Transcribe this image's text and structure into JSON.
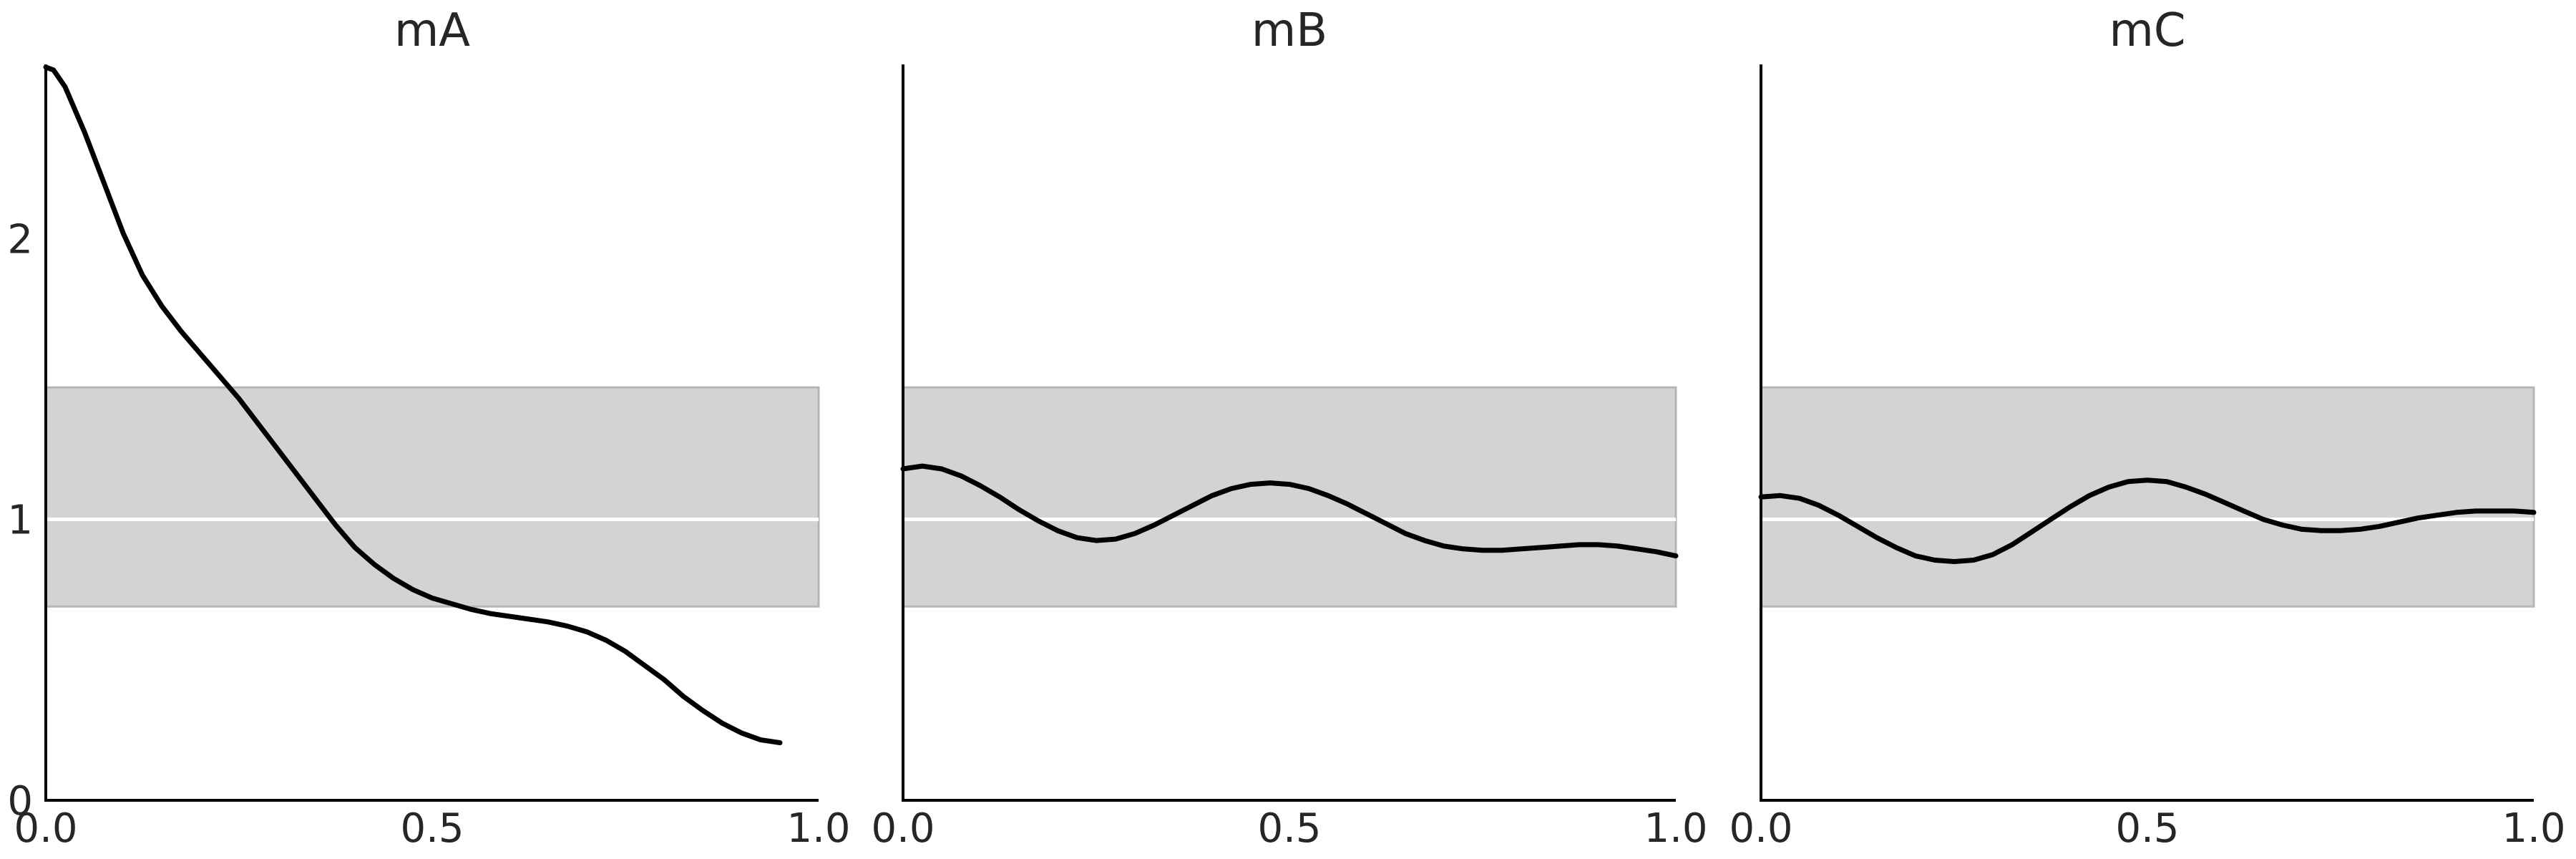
{
  "chart_data": [
    {
      "type": "line",
      "title": "mA",
      "xlabel": "",
      "ylabel": "",
      "xlim": [
        0,
        1
      ],
      "ylim": [
        0,
        2.62
      ],
      "x_ticks": [
        0,
        0.5,
        1
      ],
      "x_tick_labels": [
        "0.0",
        "0.5",
        "1.0"
      ],
      "y_ticks": [
        0,
        1,
        2
      ],
      "y_tick_labels": [
        "0",
        "1",
        "2"
      ],
      "grid": false,
      "reference_line": 1.0,
      "band": [
        0.69,
        1.47
      ],
      "series": [
        {
          "x": [
            0.0,
            0.01,
            0.025,
            0.05,
            0.075,
            0.1,
            0.125,
            0.15,
            0.175,
            0.2,
            0.225,
            0.25,
            0.275,
            0.3,
            0.325,
            0.35,
            0.375,
            0.4,
            0.425,
            0.45,
            0.475,
            0.5,
            0.525,
            0.55,
            0.575,
            0.6,
            0.625,
            0.65,
            0.675,
            0.7,
            0.725,
            0.75,
            0.775,
            0.8,
            0.825,
            0.85,
            0.875,
            0.9,
            0.925,
            0.95
          ],
          "y": [
            2.61,
            2.6,
            2.54,
            2.38,
            2.2,
            2.02,
            1.87,
            1.76,
            1.67,
            1.59,
            1.51,
            1.43,
            1.34,
            1.25,
            1.16,
            1.07,
            0.98,
            0.9,
            0.84,
            0.79,
            0.75,
            0.72,
            0.7,
            0.68,
            0.665,
            0.655,
            0.645,
            0.635,
            0.62,
            0.6,
            0.57,
            0.53,
            0.48,
            0.43,
            0.37,
            0.32,
            0.275,
            0.24,
            0.215,
            0.205
          ]
        }
      ]
    },
    {
      "type": "line",
      "title": "mB",
      "xlabel": "",
      "ylabel": "",
      "xlim": [
        0,
        1
      ],
      "ylim": [
        0,
        2.62
      ],
      "x_ticks": [
        0,
        0.5,
        1
      ],
      "x_tick_labels": [
        "0.0",
        "0.5",
        "1.0"
      ],
      "y_ticks": [],
      "y_tick_labels": [],
      "grid": false,
      "reference_line": 1.0,
      "band": [
        0.69,
        1.47
      ],
      "series": [
        {
          "x": [
            0.0,
            0.025,
            0.05,
            0.075,
            0.1,
            0.125,
            0.15,
            0.175,
            0.2,
            0.225,
            0.25,
            0.275,
            0.3,
            0.325,
            0.35,
            0.375,
            0.4,
            0.425,
            0.45,
            0.475,
            0.5,
            0.525,
            0.55,
            0.575,
            0.6,
            0.625,
            0.65,
            0.675,
            0.7,
            0.725,
            0.75,
            0.775,
            0.8,
            0.825,
            0.85,
            0.875,
            0.9,
            0.925,
            0.95,
            0.975,
            1.0
          ],
          "y": [
            1.18,
            1.19,
            1.18,
            1.155,
            1.12,
            1.08,
            1.035,
            0.995,
            0.96,
            0.935,
            0.925,
            0.93,
            0.95,
            0.98,
            1.015,
            1.05,
            1.085,
            1.11,
            1.125,
            1.13,
            1.125,
            1.11,
            1.085,
            1.055,
            1.02,
            0.985,
            0.95,
            0.925,
            0.905,
            0.895,
            0.89,
            0.89,
            0.895,
            0.9,
            0.905,
            0.91,
            0.91,
            0.905,
            0.895,
            0.885,
            0.87
          ]
        }
      ]
    },
    {
      "type": "line",
      "title": "mC",
      "xlabel": "",
      "ylabel": "",
      "xlim": [
        0,
        1
      ],
      "ylim": [
        0,
        2.62
      ],
      "x_ticks": [
        0,
        0.5,
        1
      ],
      "x_tick_labels": [
        "0.0",
        "0.5",
        "1.0"
      ],
      "y_ticks": [],
      "y_tick_labels": [],
      "grid": false,
      "reference_line": 1.0,
      "band": [
        0.69,
        1.47
      ],
      "series": [
        {
          "x": [
            0.0,
            0.025,
            0.05,
            0.075,
            0.1,
            0.125,
            0.15,
            0.175,
            0.2,
            0.225,
            0.25,
            0.275,
            0.3,
            0.325,
            0.35,
            0.375,
            0.4,
            0.425,
            0.45,
            0.475,
            0.5,
            0.525,
            0.55,
            0.575,
            0.6,
            0.625,
            0.65,
            0.675,
            0.7,
            0.725,
            0.75,
            0.775,
            0.8,
            0.825,
            0.85,
            0.875,
            0.9,
            0.925,
            0.95,
            0.975,
            1.0
          ],
          "y": [
            1.08,
            1.085,
            1.075,
            1.05,
            1.015,
            0.975,
            0.935,
            0.9,
            0.87,
            0.855,
            0.85,
            0.855,
            0.875,
            0.91,
            0.955,
            1.0,
            1.045,
            1.085,
            1.115,
            1.135,
            1.14,
            1.135,
            1.115,
            1.09,
            1.06,
            1.03,
            1.0,
            0.98,
            0.965,
            0.96,
            0.96,
            0.965,
            0.975,
            0.99,
            1.005,
            1.015,
            1.025,
            1.03,
            1.03,
            1.03,
            1.025
          ]
        }
      ]
    }
  ]
}
